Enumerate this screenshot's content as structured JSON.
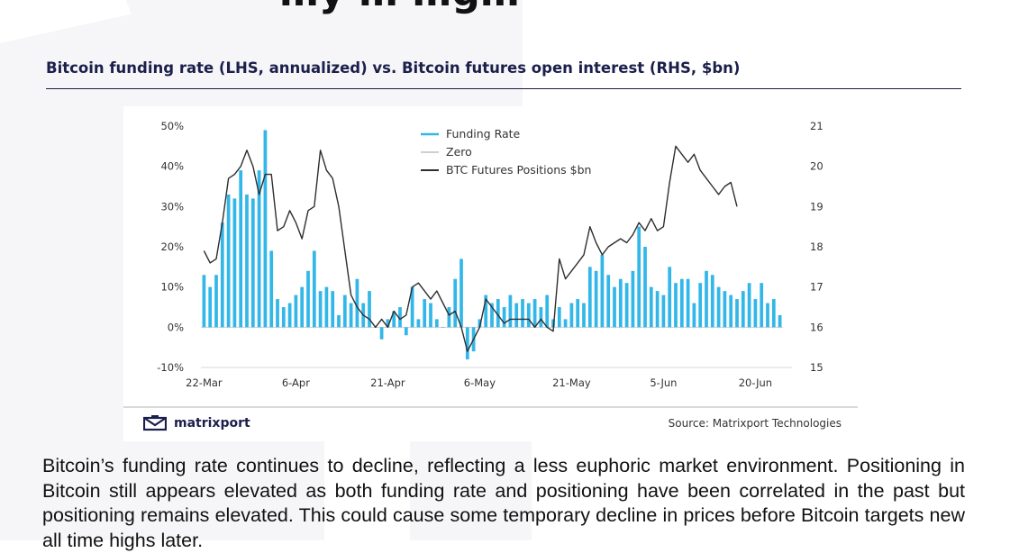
{
  "header": {
    "top_heading": "…y … …g…",
    "chart_title": "Bitcoin funding rate (LHS, annualized) vs. Bitcoin futures open interest (RHS, $bn)"
  },
  "brand": {
    "name": "matrixport",
    "icon": "matrixport-logo-icon",
    "color": "#1b1f4b"
  },
  "source": "Source: Matrixport Technologies",
  "body_text": "Bitcoin’s funding rate continues to decline, reflecting a less euphoric market environment. Positioning in Bitcoin still appears elevated as both funding rate and positioning have been correlated in the past but positioning remains elevated. This could cause some temporary decline in prices before Bitcoin targets new all time highs later.",
  "colors": {
    "funding_bar": "#33b7e8",
    "zero_line": "#cfcfcf",
    "btc_line": "#2e2e2e",
    "title": "#1b1f4b"
  },
  "chart_data": {
    "type": "bar",
    "title": "Bitcoin funding rate (LHS, annualized) vs. Bitcoin futures open interest (RHS, $bn)",
    "legend": [
      "Funding Rate",
      "Zero",
      "BTC Futures Positions $bn"
    ],
    "legend_position": "top-center",
    "grid": false,
    "x_ticks": [
      "22-Mar",
      "6-Apr",
      "21-Apr",
      "6-May",
      "21-May",
      "5-Jun",
      "20-Jun"
    ],
    "x_tick_index": [
      0,
      15,
      30,
      45,
      60,
      75,
      90
    ],
    "y_left": {
      "ticks": [
        "-10%",
        "0%",
        "10%",
        "20%",
        "30%",
        "40%",
        "50%"
      ],
      "range": [
        -10,
        50
      ],
      "unit": "%"
    },
    "y_right": {
      "ticks": [
        "15",
        "16",
        "17",
        "18",
        "19",
        "20",
        "21"
      ],
      "range": [
        15,
        21
      ]
    },
    "series": [
      {
        "name": "Funding Rate",
        "axis": "left",
        "values": [
          13,
          10,
          13,
          26,
          33,
          32,
          39,
          33,
          32,
          39,
          49,
          19,
          7,
          5,
          6,
          8,
          10,
          14,
          19,
          9,
          10,
          9,
          3,
          8,
          6,
          12,
          6,
          9,
          0,
          -3,
          2,
          4,
          5,
          -2,
          10,
          2,
          7,
          6,
          2,
          0,
          5,
          12,
          17,
          -8,
          -6,
          2,
          8,
          6,
          7,
          5,
          8,
          6,
          7,
          6,
          7,
          5,
          8,
          2,
          5,
          2,
          6,
          7,
          6,
          15,
          14,
          18,
          13,
          10,
          12,
          11,
          14,
          25,
          20,
          10,
          9,
          8,
          15,
          11,
          12,
          12,
          6,
          11,
          14,
          13,
          10,
          9,
          8,
          7,
          9,
          11,
          7,
          11,
          6,
          7,
          3
        ]
      },
      {
        "name": "BTC Futures Positions $bn",
        "axis": "right",
        "points": [
          [
            0,
            17.9
          ],
          [
            1,
            17.6
          ],
          [
            2,
            17.7
          ],
          [
            3,
            18.6
          ],
          [
            4,
            19.7
          ],
          [
            5,
            19.8
          ],
          [
            6,
            20.0
          ],
          [
            7,
            20.4
          ],
          [
            8,
            20.0
          ],
          [
            9,
            19.3
          ],
          [
            10,
            19.8
          ],
          [
            11,
            19.8
          ],
          [
            12,
            18.4
          ],
          [
            13,
            18.5
          ],
          [
            14,
            18.9
          ],
          [
            15,
            18.6
          ],
          [
            16,
            18.2
          ],
          [
            17,
            18.9
          ],
          [
            18,
            19.0
          ],
          [
            19,
            20.4
          ],
          [
            20,
            19.9
          ],
          [
            21,
            19.7
          ],
          [
            22,
            19.0
          ],
          [
            23,
            17.9
          ],
          [
            24,
            16.8
          ],
          [
            25,
            16.5
          ],
          [
            26,
            16.3
          ],
          [
            27,
            16.2
          ],
          [
            28,
            16.0
          ],
          [
            29,
            16.2
          ],
          [
            30,
            16.0
          ],
          [
            31,
            16.4
          ],
          [
            32,
            16.2
          ],
          [
            33,
            16.3
          ],
          [
            34,
            17.0
          ],
          [
            35,
            17.1
          ],
          [
            36,
            16.9
          ],
          [
            37,
            16.7
          ],
          [
            38,
            16.9
          ],
          [
            39,
            16.6
          ],
          [
            40,
            16.3
          ],
          [
            41,
            16.4
          ],
          [
            42,
            16.0
          ],
          [
            43,
            15.4
          ],
          [
            44,
            15.7
          ],
          [
            45,
            16.0
          ],
          [
            46,
            16.7
          ],
          [
            47,
            16.5
          ],
          [
            48,
            16.3
          ],
          [
            49,
            16.1
          ],
          [
            50,
            16.2
          ],
          [
            51,
            16.2
          ],
          [
            52,
            16.2
          ],
          [
            53,
            16.2
          ],
          [
            54,
            16.0
          ],
          [
            55,
            16.2
          ],
          [
            56,
            16.0
          ],
          [
            57,
            15.9
          ],
          [
            58,
            17.7
          ],
          [
            59,
            17.2
          ],
          [
            60,
            17.4
          ],
          [
            61,
            17.6
          ],
          [
            62,
            17.8
          ],
          [
            63,
            18.5
          ],
          [
            64,
            18.1
          ],
          [
            65,
            17.8
          ],
          [
            66,
            18.0
          ],
          [
            67,
            18.1
          ],
          [
            68,
            18.2
          ],
          [
            69,
            18.1
          ],
          [
            70,
            18.3
          ],
          [
            71,
            18.6
          ],
          [
            72,
            18.4
          ],
          [
            73,
            18.7
          ],
          [
            74,
            18.4
          ],
          [
            75,
            18.5
          ],
          [
            76,
            19.6
          ],
          [
            77,
            20.5
          ],
          [
            78,
            20.3
          ],
          [
            79,
            20.1
          ],
          [
            80,
            20.3
          ],
          [
            81,
            19.9
          ],
          [
            82,
            19.7
          ],
          [
            83,
            19.5
          ],
          [
            84,
            19.3
          ],
          [
            85,
            19.5
          ],
          [
            86,
            19.6
          ],
          [
            87,
            19.0
          ]
        ]
      }
    ],
    "zero_line": 0
  }
}
